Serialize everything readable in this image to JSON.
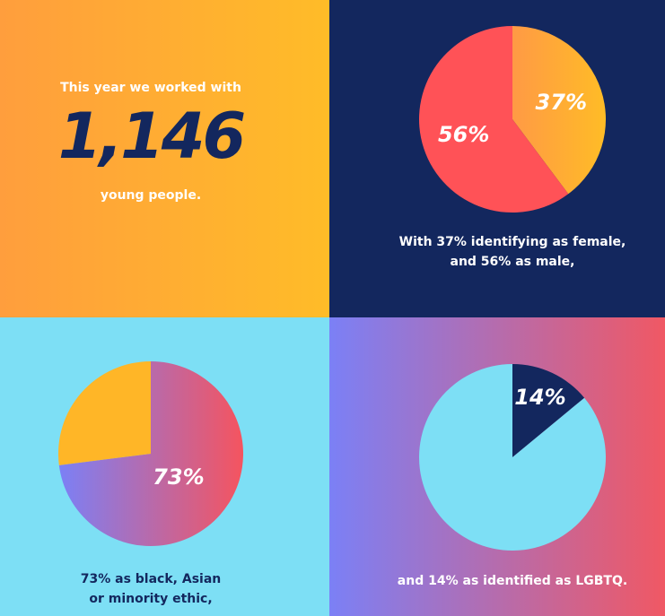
{
  "intro": {
    "lead": "This year we worked with",
    "count": "1,146",
    "tail": "young people."
  },
  "chart_data": [
    {
      "type": "pie",
      "values": [
        37,
        56
      ],
      "value_labels": [
        "37%",
        "56%"
      ],
      "colors": [
        [
          "#ff9a45",
          "#ffbc26"
        ],
        "#ff5257"
      ],
      "caption": [
        "With 37% identifying as female,",
        "and 56% as male,"
      ]
    },
    {
      "type": "pie",
      "values": [
        73,
        27
      ],
      "value_labels": [
        "73%",
        null
      ],
      "colors": [
        [
          "#7b80f6",
          "#f5545f"
        ],
        "#ffb627"
      ],
      "caption": [
        "73% as black, Asian",
        "or minority ethic,"
      ]
    },
    {
      "type": "pie",
      "values": [
        14,
        86
      ],
      "value_labels": [
        "14%",
        null
      ],
      "colors": [
        "#13275e",
        "#7ddff5"
      ],
      "caption": [
        "and 14% as identified as LGBTQ."
      ]
    }
  ]
}
